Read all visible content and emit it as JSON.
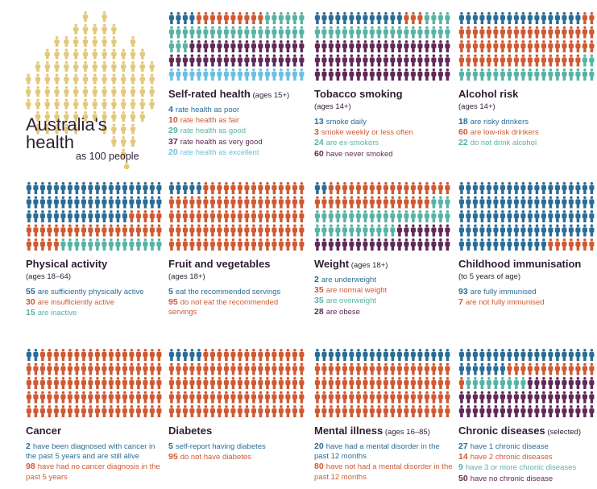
{
  "colors": {
    "navy": "#2a6d97",
    "orange": "#cf5a33",
    "teal": "#58b3a5",
    "purple": "#5f2a58",
    "light_blue": "#6cc0e0",
    "gold": "#e4c87a"
  },
  "hero": {
    "title_line1": "Australia's",
    "title_line2": "health",
    "subtitle": "as 100 people",
    "icon": "people-map-of-australia",
    "people_count": 100
  },
  "panels": [
    {
      "id": "self-rated-health",
      "title": "Self-rated health",
      "title_note": "(ages 15+)",
      "subline": "",
      "items": [
        {
          "count": 4,
          "text": "rate health as poor",
          "color": "#2a6d97"
        },
        {
          "count": 10,
          "text": "rate health as fair",
          "color": "#cf5a33"
        },
        {
          "count": 29,
          "text": "rate health as good",
          "color": "#58b3a5"
        },
        {
          "count": 37,
          "text": "rate health as very good",
          "color": "#5f2a58"
        },
        {
          "count": 20,
          "text": "rate health as excellent",
          "color": "#6cc0e0"
        }
      ]
    },
    {
      "id": "tobacco-smoking",
      "title": "Tobacco smoking",
      "title_note": "",
      "subline": "(ages 14+)",
      "items": [
        {
          "count": 13,
          "text": "smoke daily",
          "color": "#2a6d97"
        },
        {
          "count": 3,
          "text": "smoke weekly or less often",
          "color": "#cf5a33"
        },
        {
          "count": 24,
          "text": "are ex-smokers",
          "color": "#58b3a5"
        },
        {
          "count": 60,
          "text": "have never smoked",
          "color": "#5f2a58"
        }
      ]
    },
    {
      "id": "alcohol-risk",
      "title": "Alcohol risk",
      "title_note": "",
      "subline": "(ages 14+)",
      "items": [
        {
          "count": 18,
          "text": "are risky drinkers",
          "color": "#2a6d97"
        },
        {
          "count": 60,
          "text": "are low-risk drinkers",
          "color": "#cf5a33"
        },
        {
          "count": 22,
          "text": "do not drink alcohol",
          "color": "#58b3a5"
        }
      ]
    },
    {
      "id": "physical-activity",
      "title": "Physical activity",
      "title_note": "",
      "subline": "(ages 18–64)",
      "items": [
        {
          "count": 55,
          "text": "are sufficiently physically active",
          "color": "#2a6d97"
        },
        {
          "count": 30,
          "text": "are insufficiently active",
          "color": "#cf5a33"
        },
        {
          "count": 15,
          "text": "are inactive",
          "color": "#58b3a5"
        }
      ]
    },
    {
      "id": "fruit-and-vegetables",
      "title": "Fruit and vegetables",
      "title_note": "",
      "subline": "(ages 18+)",
      "items": [
        {
          "count": 5,
          "text": "eat the recommended servings",
          "color": "#2a6d97"
        },
        {
          "count": 95,
          "text": "do not eat the recommended servings",
          "color": "#cf5a33"
        }
      ]
    },
    {
      "id": "weight",
      "title": "Weight",
      "title_note": "(ages 18+)",
      "subline": "",
      "items": [
        {
          "count": 2,
          "text": "are underweight",
          "color": "#2a6d97"
        },
        {
          "count": 35,
          "text": "are normal weight",
          "color": "#cf5a33"
        },
        {
          "count": 35,
          "text": "are overweight",
          "color": "#58b3a5"
        },
        {
          "count": 28,
          "text": "are obese",
          "color": "#5f2a58"
        }
      ]
    },
    {
      "id": "childhood-immunisation",
      "title": "Childhood immunisation",
      "title_note": "",
      "subline": "(to 5 years of age)",
      "items": [
        {
          "count": 93,
          "text": "are fully immunised",
          "color": "#2a6d97"
        },
        {
          "count": 7,
          "text": "are not fully immunised",
          "color": "#cf5a33"
        }
      ]
    },
    {
      "id": "cancer",
      "title": "Cancer",
      "title_note": "",
      "subline": "",
      "items": [
        {
          "count": 2,
          "text": "have been diagnosed with cancer in the past 5 years and are still alive",
          "color": "#2a6d97"
        },
        {
          "count": 98,
          "text": "have had no cancer diagnosis in the past 5 years",
          "color": "#cf5a33"
        }
      ]
    },
    {
      "id": "diabetes",
      "title": "Diabetes",
      "title_note": "",
      "subline": "",
      "items": [
        {
          "count": 5,
          "text": "self-report having diabetes",
          "color": "#2a6d97"
        },
        {
          "count": 95,
          "text": "do not have diabetes",
          "color": "#cf5a33"
        }
      ]
    },
    {
      "id": "mental-illness",
      "title": "Mental illness",
      "title_note": "(ages 16–85)",
      "subline": "",
      "items": [
        {
          "count": 20,
          "text": "have had a mental disorder in the past 12 months",
          "color": "#2a6d97"
        },
        {
          "count": 80,
          "text": "have not had a mental disorder in the past 12 months",
          "color": "#cf5a33"
        }
      ]
    },
    {
      "id": "chronic-diseases",
      "title": "Chronic diseases",
      "title_note": "(selected)",
      "subline": "",
      "items": [
        {
          "count": 27,
          "text": "have 1 chronic disease",
          "color": "#2a6d97"
        },
        {
          "count": 14,
          "text": "have 2 chronic diseases",
          "color": "#cf5a33"
        },
        {
          "count": 9,
          "text": "have 3 or more chronic diseases",
          "color": "#58b3a5"
        },
        {
          "count": 50,
          "text": "have no chronic disease",
          "color": "#5f2a58"
        }
      ]
    }
  ],
  "chart_data": {
    "type": "table",
    "title": "Australia's health as 100 people",
    "unit": "people out of 100",
    "series": [
      {
        "name": "Self-rated health (ages 15+)",
        "categories": [
          "poor",
          "fair",
          "good",
          "very good",
          "excellent"
        ],
        "values": [
          4,
          10,
          29,
          37,
          20
        ]
      },
      {
        "name": "Tobacco smoking (ages 14+)",
        "categories": [
          "smoke daily",
          "smoke weekly or less often",
          "ex-smokers",
          "never smoked"
        ],
        "values": [
          13,
          3,
          24,
          60
        ]
      },
      {
        "name": "Alcohol risk (ages 14+)",
        "categories": [
          "risky drinkers",
          "low-risk drinkers",
          "do not drink alcohol"
        ],
        "values": [
          18,
          60,
          22
        ]
      },
      {
        "name": "Physical activity (ages 18–64)",
        "categories": [
          "sufficiently active",
          "insufficiently active",
          "inactive"
        ],
        "values": [
          55,
          30,
          15
        ]
      },
      {
        "name": "Fruit and vegetables (ages 18+)",
        "categories": [
          "eat recommended servings",
          "do not eat recommended servings"
        ],
        "values": [
          5,
          95
        ]
      },
      {
        "name": "Weight (ages 18+)",
        "categories": [
          "underweight",
          "normal weight",
          "overweight",
          "obese"
        ],
        "values": [
          2,
          35,
          35,
          28
        ]
      },
      {
        "name": "Childhood immunisation (to 5 years of age)",
        "categories": [
          "fully immunised",
          "not fully immunised"
        ],
        "values": [
          93,
          7
        ]
      },
      {
        "name": "Cancer",
        "categories": [
          "diagnosed in past 5 years and alive",
          "no diagnosis in past 5 years"
        ],
        "values": [
          2,
          98
        ]
      },
      {
        "name": "Diabetes",
        "categories": [
          "self-report diabetes",
          "no diabetes"
        ],
        "values": [
          5,
          95
        ]
      },
      {
        "name": "Mental illness (ages 16–85)",
        "categories": [
          "mental disorder in past 12 months",
          "no mental disorder in past 12 months"
        ],
        "values": [
          20,
          80
        ]
      },
      {
        "name": "Chronic diseases (selected)",
        "categories": [
          "1 chronic disease",
          "2 chronic diseases",
          "3 or more",
          "none"
        ],
        "values": [
          27,
          14,
          9,
          50
        ]
      }
    ]
  }
}
